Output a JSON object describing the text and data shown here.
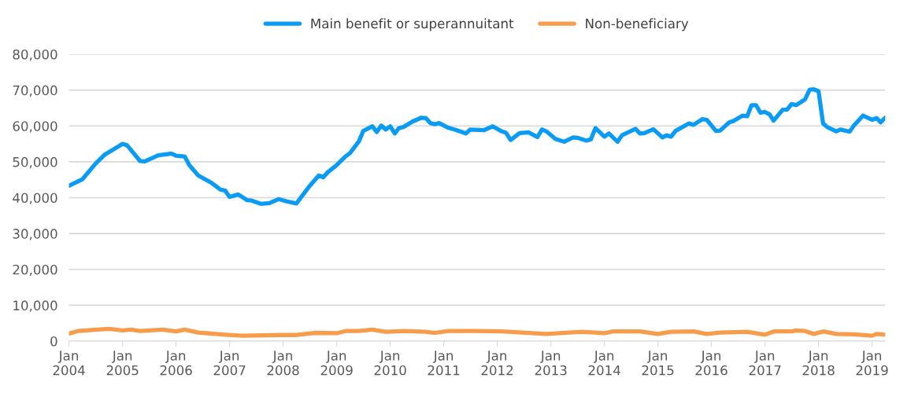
{
  "chart_data": {
    "type": "line",
    "xlim": [
      "2004-01",
      "2019-04"
    ],
    "xticks": [
      {
        "value": "2004-01",
        "label": "Jan\n2004"
      },
      {
        "value": "2005-01",
        "label": "Jan\n2005"
      },
      {
        "value": "2006-01",
        "label": "Jan\n2006"
      },
      {
        "value": "2007-01",
        "label": "Jan\n2007"
      },
      {
        "value": "2008-01",
        "label": "Jan\n2008"
      },
      {
        "value": "2009-01",
        "label": "Jan\n2009"
      },
      {
        "value": "2010-01",
        "label": "Jan\n2010"
      },
      {
        "value": "2011-01",
        "label": "Jan\n2011"
      },
      {
        "value": "2012-01",
        "label": "Jan\n2012"
      },
      {
        "value": "2013-01",
        "label": "Jan\n2013"
      },
      {
        "value": "2014-01",
        "label": "Jan\n2014"
      },
      {
        "value": "2015-01",
        "label": "Jan\n2015"
      },
      {
        "value": "2016-01",
        "label": "Jan\n2016"
      },
      {
        "value": "2017-01",
        "label": "Jan\n2017"
      },
      {
        "value": "2018-01",
        "label": "Jan\n2018"
      },
      {
        "value": "2019-01",
        "label": "Jan\n2019"
      }
    ],
    "ylim": [
      0,
      80000
    ],
    "yticks": [
      {
        "value": 0,
        "label": "0"
      },
      {
        "value": 10000,
        "label": "10,000"
      },
      {
        "value": 20000,
        "label": "20,000"
      },
      {
        "value": 30000,
        "label": "30,000"
      },
      {
        "value": 40000,
        "label": "40,000"
      },
      {
        "value": 50000,
        "label": "50,000"
      },
      {
        "value": 60000,
        "label": "60,000"
      },
      {
        "value": 70000,
        "label": "70,000"
      },
      {
        "value": 80000,
        "label": "80,000"
      }
    ],
    "grid": "y",
    "legend": "top",
    "marker": "none",
    "line_style": "solid",
    "series": [
      {
        "name": "Main benefit or superannuitant",
        "color": "#0a9cf5",
        "x": [
          "2004-01",
          "2004-04",
          "2004-07",
          "2004-09",
          "2004-11",
          "2005-01",
          "2005-02",
          "2005-05",
          "2005-06",
          "2005-09",
          "2005-12",
          "2006-01",
          "2006-03",
          "2006-04",
          "2006-06",
          "2006-09",
          "2006-11",
          "2006-12",
          "2007-01",
          "2007-03",
          "2007-05",
          "2007-06",
          "2007-08",
          "2007-10",
          "2007-12",
          "2008-02",
          "2008-04",
          "2008-07",
          "2008-09",
          "2008-10",
          "2008-11",
          "2009-01",
          "2009-03",
          "2009-04",
          "2009-06",
          "2009-07",
          "2009-09",
          "2009-10",
          "2009-11",
          "2009-12",
          "2010-01",
          "2010-02",
          "2010-03",
          "2010-04",
          "2010-06",
          "2010-08",
          "2010-09",
          "2010-10",
          "2010-11",
          "2010-12",
          "2011-02",
          "2011-04",
          "2011-06",
          "2011-07",
          "2011-10",
          "2011-12",
          "2012-02",
          "2012-03",
          "2012-04",
          "2012-06",
          "2012-08",
          "2012-10",
          "2012-11",
          "2012-12",
          "2013-02",
          "2013-04",
          "2013-06",
          "2013-07",
          "2013-09",
          "2013-10",
          "2013-11",
          "2014-01",
          "2014-02",
          "2014-04",
          "2014-05",
          "2014-08",
          "2014-09",
          "2014-10",
          "2014-12",
          "2015-02",
          "2015-03",
          "2015-04",
          "2015-05",
          "2015-08",
          "2015-09",
          "2015-11",
          "2015-12",
          "2016-02",
          "2016-03",
          "2016-05",
          "2016-06",
          "2016-08",
          "2016-09",
          "2016-10",
          "2016-11",
          "2016-12",
          "2017-01",
          "2017-02",
          "2017-03",
          "2017-05",
          "2017-06",
          "2017-07",
          "2017-08",
          "2017-10",
          "2017-11",
          "2017-12",
          "2018-01",
          "2018-02",
          "2018-03",
          "2018-05",
          "2018-06",
          "2018-08",
          "2018-09",
          "2018-11",
          "2019-01",
          "2019-02",
          "2019-03",
          "2019-04"
        ],
        "values": [
          43300,
          45100,
          49500,
          52000,
          53500,
          55000,
          54600,
          50200,
          50100,
          51800,
          52300,
          51700,
          51500,
          49100,
          46200,
          44100,
          42200,
          42000,
          40200,
          40900,
          39300,
          39200,
          38300,
          38500,
          39600,
          38900,
          38400,
          43300,
          46200,
          45700,
          47100,
          49100,
          51500,
          52400,
          55700,
          58600,
          59900,
          58300,
          60100,
          59000,
          59900,
          57900,
          59400,
          59700,
          61200,
          62300,
          62200,
          60800,
          60500,
          60800,
          59500,
          58800,
          57900,
          59000,
          58800,
          59900,
          58500,
          58100,
          56100,
          58000,
          58200,
          56900,
          59000,
          58500,
          56400,
          55600,
          56800,
          56700,
          55900,
          56300,
          59400,
          57000,
          57900,
          55600,
          57400,
          59200,
          57900,
          58000,
          59100,
          56800,
          57400,
          57000,
          58600,
          60700,
          60300,
          61900,
          61700,
          58600,
          58700,
          61000,
          61400,
          62900,
          62700,
          65800,
          65800,
          63700,
          63900,
          63200,
          61500,
          64500,
          64600,
          66100,
          65800,
          67400,
          70100,
          70200,
          69700,
          60700,
          59700,
          58500,
          59000,
          58400,
          60200,
          62900,
          61700,
          62200,
          61000,
          62300
        ]
      },
      {
        "name": "Non-beneficiary",
        "color": "#f79c4a",
        "x": [
          "2004-01",
          "2004-03",
          "2004-06",
          "2004-10",
          "2005-01",
          "2005-03",
          "2005-05",
          "2005-10",
          "2006-01",
          "2006-03",
          "2006-06",
          "2006-12",
          "2007-04",
          "2007-12",
          "2008-04",
          "2008-08",
          "2009-01",
          "2009-03",
          "2009-06",
          "2009-09",
          "2009-12",
          "2010-04",
          "2010-09",
          "2010-11",
          "2011-02",
          "2011-08",
          "2012-02",
          "2012-12",
          "2013-08",
          "2014-01",
          "2014-03",
          "2014-09",
          "2015-01",
          "2015-04",
          "2015-09",
          "2015-12",
          "2016-03",
          "2016-09",
          "2017-01",
          "2017-03",
          "2017-07",
          "2017-08",
          "2017-10",
          "2017-12",
          "2018-02",
          "2018-05",
          "2018-09",
          "2019-01",
          "2019-02",
          "2019-04"
        ],
        "values": [
          2100,
          2800,
          3100,
          3400,
          3000,
          3200,
          2800,
          3200,
          2700,
          3200,
          2400,
          1800,
          1500,
          1700,
          1700,
          2300,
          2200,
          2800,
          2800,
          3200,
          2600,
          2800,
          2600,
          2300,
          2800,
          2800,
          2700,
          2000,
          2600,
          2200,
          2700,
          2700,
          2000,
          2600,
          2700,
          2000,
          2400,
          2600,
          1800,
          2700,
          2700,
          3000,
          2800,
          2000,
          2700,
          2000,
          1900,
          1500,
          2000,
          1800
        ]
      }
    ]
  }
}
